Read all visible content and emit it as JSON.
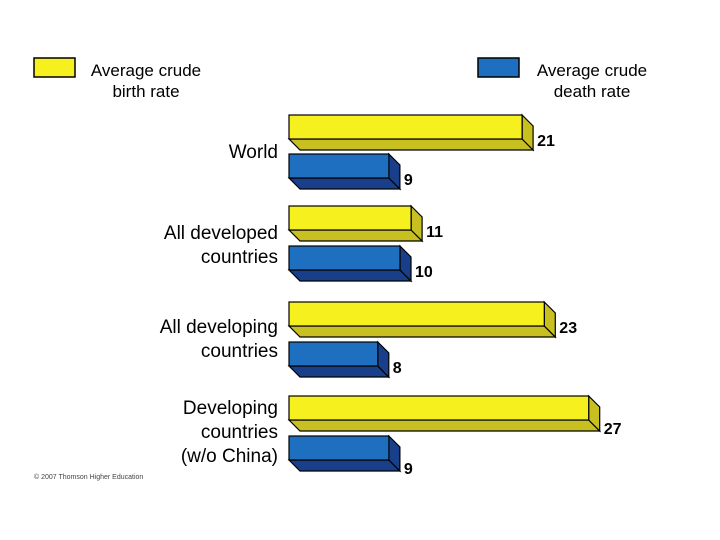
{
  "legend": {
    "birth_label": "Average crude\nbirth rate",
    "death_label": "Average crude\ndeath rate"
  },
  "colors": {
    "birth_face": "#f5f01e",
    "birth_side": "#c8c020",
    "death_face": "#1e6fc0",
    "death_side": "#1a3f8a"
  },
  "copyright": "© 2007 Thomson Higher Education",
  "chart_data": {
    "type": "bar",
    "orientation": "horizontal",
    "title": "",
    "categories": [
      "World",
      "All developed\ncountries",
      "All developing\ncountries",
      "Developing\ncountries\n(w/o China)"
    ],
    "series": [
      {
        "name": "Average crude birth rate",
        "values": [
          21,
          11,
          23,
          27
        ]
      },
      {
        "name": "Average crude death rate",
        "values": [
          9,
          10,
          8,
          9
        ]
      }
    ],
    "xlim": [
      0,
      30
    ],
    "xlabel": "",
    "ylabel": ""
  }
}
